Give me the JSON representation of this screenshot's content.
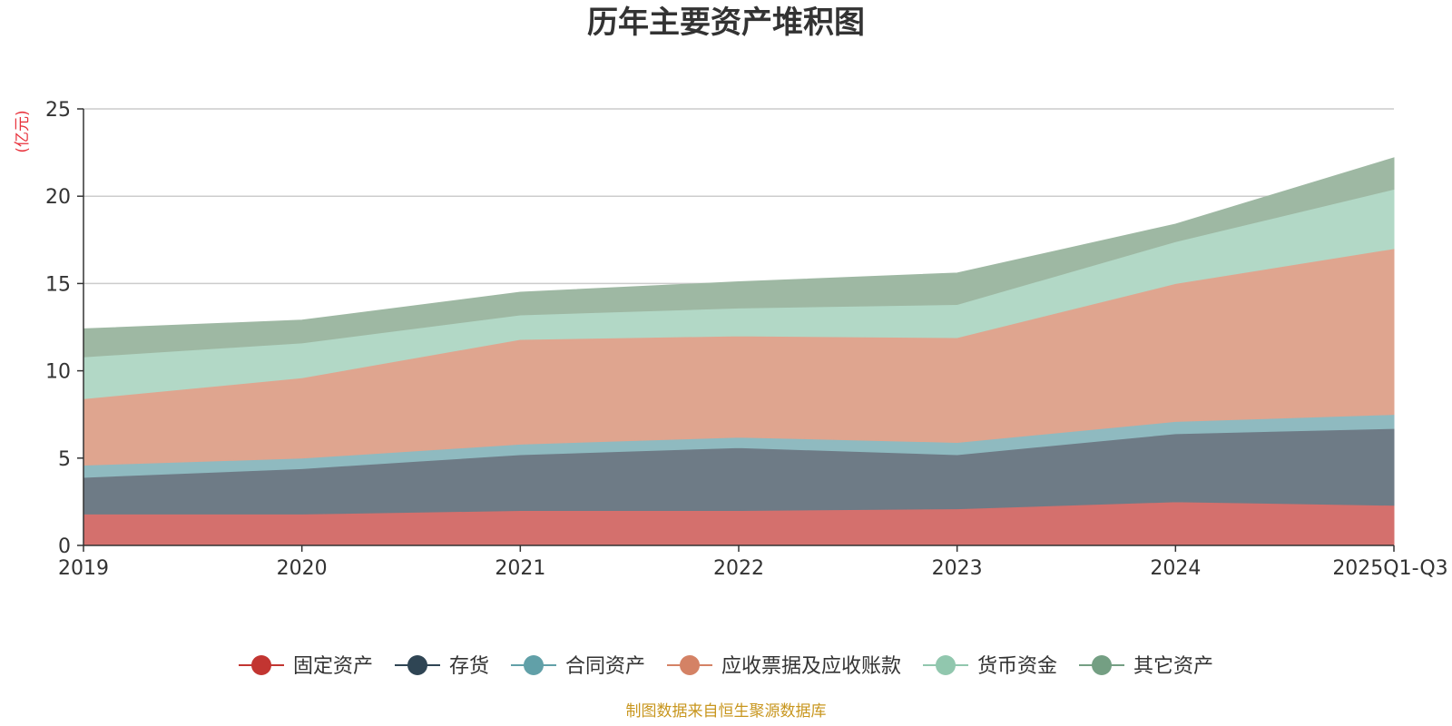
{
  "chart_data": {
    "type": "area",
    "stacked": true,
    "title": "历年主要资产堆积图",
    "ylabel": "(亿元)",
    "xlabel": "",
    "ylim": [
      0,
      25
    ],
    "yticks": [
      "0",
      "5",
      "10",
      "15",
      "20",
      "25"
    ],
    "yticks_values": [
      0,
      5,
      10,
      15,
      20,
      25
    ],
    "categories": [
      "2019",
      "2020",
      "2021",
      "2022",
      "2023",
      "2024",
      "2025Q1-Q3"
    ],
    "series": [
      {
        "name": "固定资产",
        "color": "#c23531",
        "fill": "#d4706d",
        "values": [
          1.8,
          1.8,
          2.0,
          2.0,
          2.1,
          2.5,
          2.3
        ]
      },
      {
        "name": "存货",
        "color": "#2f4554",
        "fill": "#6e7b86",
        "values": [
          2.1,
          2.6,
          3.2,
          3.6,
          3.1,
          3.9,
          4.4
        ]
      },
      {
        "name": "合同资产",
        "color": "#61a0a8",
        "fill": "#8fbac0",
        "values": [
          0.7,
          0.6,
          0.6,
          0.6,
          0.7,
          0.7,
          0.8
        ]
      },
      {
        "name": "应收票据及应收账款",
        "color": "#d48265",
        "fill": "#dfa58f",
        "values": [
          3.8,
          4.6,
          6.0,
          5.8,
          6.0,
          7.9,
          9.5
        ]
      },
      {
        "name": "货币资金",
        "color": "#91c7ae",
        "fill": "#b2d8c6",
        "values": [
          2.4,
          2.0,
          1.4,
          1.6,
          1.9,
          2.4,
          3.4
        ]
      },
      {
        "name": "其它资产",
        "color": "#749f83",
        "fill": "#9eb8a3",
        "values": [
          1.6,
          1.3,
          1.3,
          1.5,
          1.8,
          1.0,
          1.8
        ]
      }
    ],
    "grid": true,
    "legend_position": "bottom"
  },
  "colors": {
    "ylabel": "#e8323c",
    "source": "#c8961e",
    "grid": "#cccccc",
    "axis": "#333333"
  },
  "source_text": "制图数据来自恒生聚源数据库"
}
